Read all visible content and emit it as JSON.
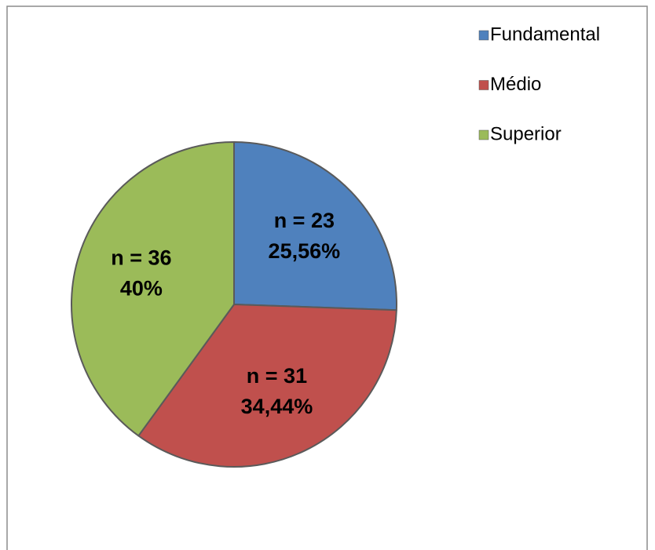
{
  "chart_data": {
    "type": "pie",
    "categories": [
      "Fundamental",
      "Médio",
      "Superior"
    ],
    "values": [
      23,
      31,
      36
    ],
    "value_labels": [
      "n = 23",
      "n = 31",
      "n = 36"
    ],
    "percentages": [
      25.56,
      34.44,
      40
    ],
    "percentage_labels": [
      "25,56%",
      "34,44%",
      "40%"
    ],
    "colors": [
      "#4f81bd",
      "#c0504d",
      "#9bbb59"
    ],
    "legend": "top-right"
  }
}
